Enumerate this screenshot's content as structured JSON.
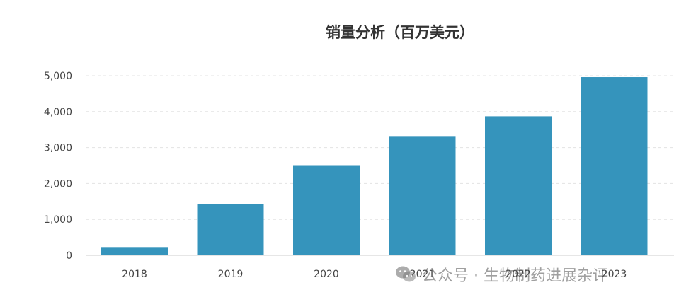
{
  "chart_data": {
    "type": "bar",
    "title": "销量分析（百万美元）",
    "categories": [
      "2018",
      "2019",
      "2020",
      "2021",
      "2022",
      "2023"
    ],
    "values": [
      230,
      1430,
      2490,
      3320,
      3870,
      4960
    ],
    "ylim": [
      0,
      5000
    ],
    "yticks": [
      0,
      1000,
      2000,
      3000,
      4000,
      5000
    ],
    "ytick_labels": [
      "0",
      "1,000",
      "2,000",
      "3,000",
      "4,000",
      "5,000"
    ],
    "grid": true,
    "bar_color": "#3594bc"
  },
  "watermark": {
    "text": "公众号 · 生物制药进展杂评",
    "icon": "wechat-icon"
  }
}
